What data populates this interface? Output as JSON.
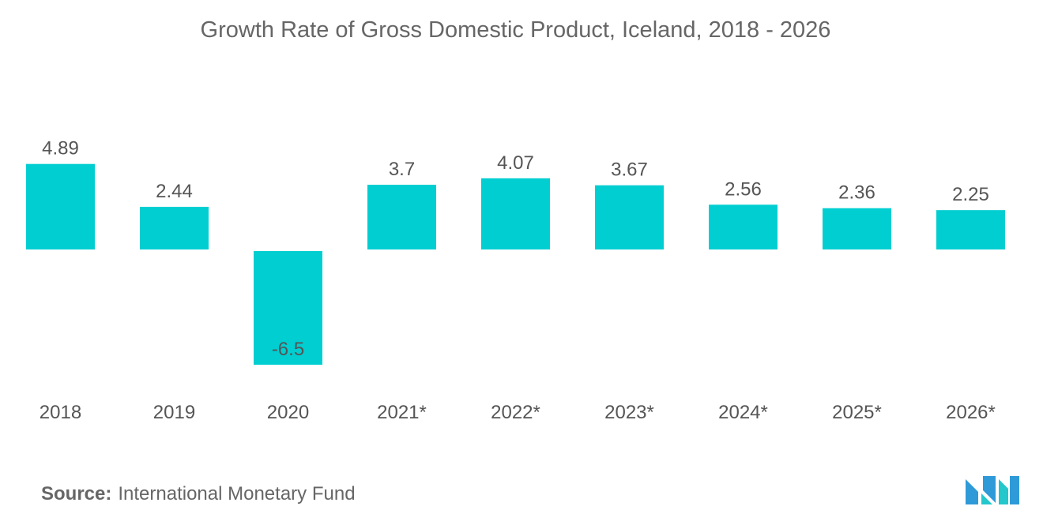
{
  "chart_data": {
    "type": "bar",
    "title": "Growth Rate of Gross Domestic Product, Iceland, 2018 - 2026",
    "categories": [
      "2018",
      "2019",
      "2020",
      "2021*",
      "2022*",
      "2023*",
      "2024*",
      "2025*",
      "2026*"
    ],
    "values": [
      4.89,
      2.44,
      -6.5,
      3.7,
      4.07,
      3.67,
      2.56,
      2.36,
      2.25
    ],
    "data_labels": [
      "4.89",
      "2.44",
      "-6.5",
      "3.7",
      "4.07",
      "3.67",
      "2.56",
      "2.36",
      "2.25"
    ],
    "xlabel": "",
    "ylabel": "",
    "ylim": [
      -6.5,
      4.89
    ],
    "grid": false,
    "legend": "none",
    "bar_color": "#00CED1"
  },
  "source": {
    "label": "Source:",
    "text": "International Monetary Fund"
  },
  "logo": {
    "icon": "mordor-intelligence-logo",
    "colors": [
      "#2E9AD8",
      "#23C7CC"
    ]
  }
}
